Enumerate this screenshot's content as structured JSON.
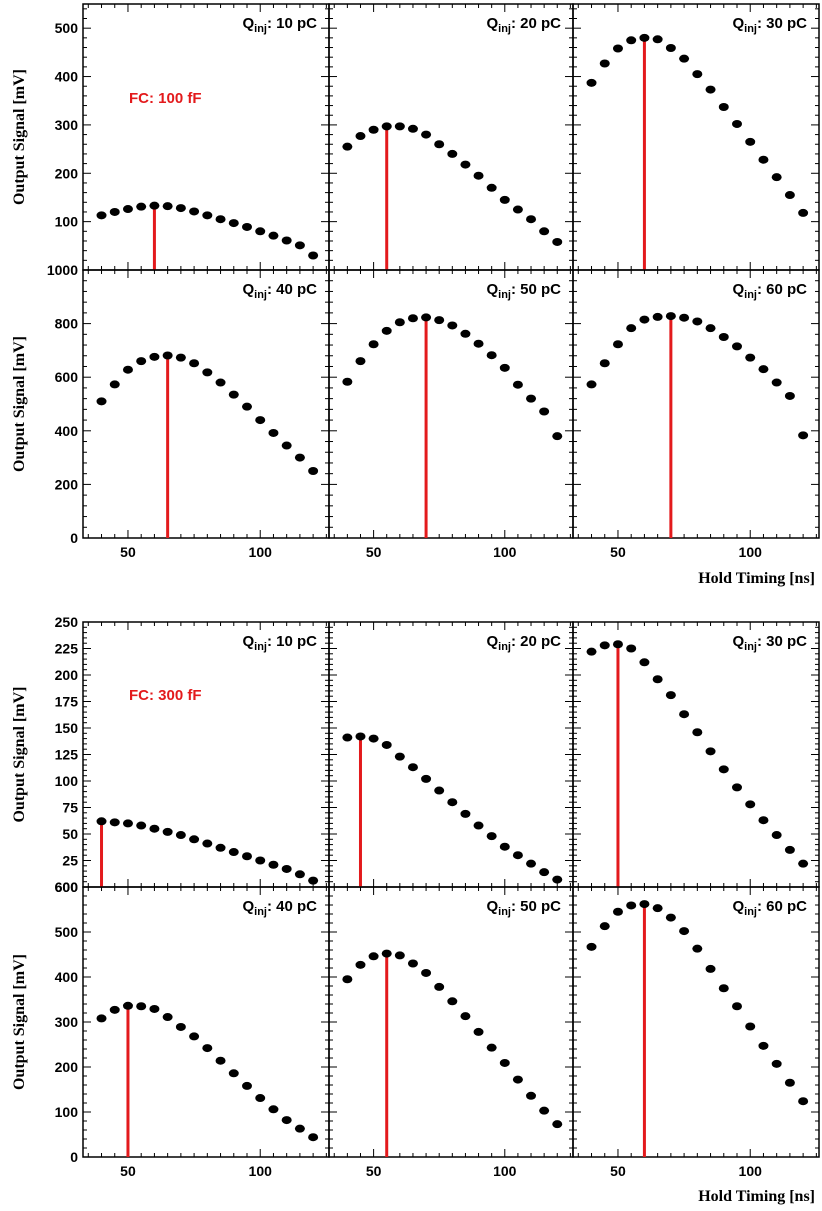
{
  "colors": {
    "marker": "#000000",
    "peak_line": "#e31a1c",
    "fc_label": "#e31a1c",
    "frame": "#000000"
  },
  "chart_data": [
    {
      "type": "scatter",
      "fc_label": "FC: 100 fF",
      "ylabel": "Output Signal [mV]",
      "xlabel": "Hold Timing [ns]",
      "x": [
        40,
        45,
        50,
        55,
        60,
        65,
        70,
        75,
        80,
        85,
        90,
        95,
        100,
        105,
        110,
        115,
        120
      ],
      "xlim": [
        33,
        126
      ],
      "xticks": [
        "50",
        "100"
      ],
      "xtick_values": [
        50,
        100
      ],
      "rows": [
        {
          "ylim": [
            0,
            550
          ],
          "yticks": [
            "100",
            "200",
            "300",
            "400",
            "500"
          ],
          "ytick_values": [
            100,
            200,
            300,
            400,
            500
          ],
          "top_label": "1000",
          "panels": [
            {
              "q_main": "Q",
              "q_sub": "inj",
              "q_tail": ": 10 pC",
              "peak_x": 60,
              "values": [
                113,
                120,
                126,
                131,
                133,
                132,
                128,
                121,
                113,
                105,
                97,
                89,
                80,
                71,
                61,
                51,
                30
              ]
            },
            {
              "q_main": "Q",
              "q_sub": "inj",
              "q_tail": ": 20 pC",
              "peak_x": 55,
              "values": [
                255,
                277,
                290,
                297,
                297,
                292,
                280,
                260,
                240,
                218,
                195,
                170,
                145,
                125,
                105,
                80,
                58
              ]
            },
            {
              "q_main": "Q",
              "q_sub": "inj",
              "q_tail": ": 30 pC",
              "peak_x": 60,
              "values": [
                387,
                427,
                458,
                475,
                480,
                477,
                459,
                437,
                405,
                373,
                337,
                302,
                265,
                228,
                192,
                155,
                118
              ]
            }
          ]
        },
        {
          "ylim": [
            0,
            1000
          ],
          "yticks": [
            "0",
            "200",
            "400",
            "600",
            "800"
          ],
          "ytick_values": [
            0,
            200,
            400,
            600,
            800
          ],
          "panels": [
            {
              "q_main": "Q",
              "q_sub": "inj",
              "q_tail": ": 40 pC",
              "peak_x": 65,
              "values": [
                510,
                573,
                628,
                660,
                676,
                681,
                673,
                652,
                618,
                580,
                535,
                490,
                440,
                392,
                345,
                300,
                250
              ]
            },
            {
              "q_main": "Q",
              "q_sub": "inj",
              "q_tail": ": 50 pC",
              "peak_x": 70,
              "values": [
                583,
                660,
                723,
                773,
                805,
                820,
                823,
                813,
                793,
                762,
                725,
                682,
                635,
                572,
                520,
                472,
                380
              ]
            },
            {
              "q_main": "Q",
              "q_sub": "inj",
              "q_tail": ": 60 pC",
              "peak_x": 70,
              "values": [
                573,
                652,
                723,
                783,
                815,
                825,
                828,
                822,
                808,
                783,
                750,
                715,
                673,
                630,
                580,
                530,
                383
              ]
            }
          ]
        }
      ]
    },
    {
      "type": "scatter",
      "fc_label": "FC: 300 fF",
      "ylabel": "Output Signal [mV]",
      "xlabel": "Hold Timing [ns]",
      "x": [
        40,
        45,
        50,
        55,
        60,
        65,
        70,
        75,
        80,
        85,
        90,
        95,
        100,
        105,
        110,
        115,
        120
      ],
      "xlim": [
        33,
        126
      ],
      "xticks": [
        "50",
        "100"
      ],
      "xtick_values": [
        50,
        100
      ],
      "rows": [
        {
          "ylim": [
            0,
            250
          ],
          "yticks": [
            "25",
            "50",
            "75",
            "100",
            "125",
            "150",
            "175",
            "200",
            "225",
            "250"
          ],
          "ytick_values": [
            25,
            50,
            75,
            100,
            125,
            150,
            175,
            200,
            225,
            250
          ],
          "top_label": "600",
          "panels": [
            {
              "q_main": "Q",
              "q_sub": "inj",
              "q_tail": ": 10 pC",
              "peak_x": 40,
              "values": [
                62,
                61,
                60,
                58,
                55,
                52,
                49,
                45,
                41,
                37,
                33,
                29,
                25,
                21,
                17,
                12,
                6
              ]
            },
            {
              "q_main": "Q",
              "q_sub": "inj",
              "q_tail": ": 20 pC",
              "peak_x": 45,
              "values": [
                141,
                142,
                140,
                134,
                123,
                113,
                102,
                91,
                80,
                69,
                58,
                48,
                38,
                30,
                22,
                14,
                7
              ]
            },
            {
              "q_main": "Q",
              "q_sub": "inj",
              "q_tail": ": 30 pC",
              "peak_x": 50,
              "values": [
                222,
                228,
                229,
                225,
                212,
                196,
                181,
                163,
                146,
                128,
                111,
                94,
                78,
                63,
                49,
                35,
                22
              ]
            }
          ]
        },
        {
          "ylim": [
            0,
            600
          ],
          "yticks": [
            "0",
            "100",
            "200",
            "300",
            "400",
            "500",
            "600"
          ],
          "ytick_values": [
            0,
            100,
            200,
            300,
            400,
            500,
            600
          ],
          "panels": [
            {
              "q_main": "Q",
              "q_sub": "inj",
              "q_tail": ": 40 pC",
              "peak_x": 50,
              "values": [
                308,
                327,
                336,
                335,
                329,
                311,
                289,
                268,
                242,
                214,
                186,
                158,
                131,
                106,
                82,
                63,
                44
              ]
            },
            {
              "q_main": "Q",
              "q_sub": "inj",
              "q_tail": ": 50 pC",
              "peak_x": 55,
              "values": [
                395,
                427,
                446,
                452,
                448,
                430,
                409,
                378,
                346,
                313,
                278,
                243,
                209,
                172,
                136,
                103,
                73
              ]
            },
            {
              "q_main": "Q",
              "q_sub": "inj",
              "q_tail": ": 60 pC",
              "peak_x": 60,
              "values": [
                467,
                513,
                545,
                559,
                562,
                553,
                532,
                502,
                463,
                418,
                375,
                335,
                290,
                247,
                207,
                165,
                124
              ]
            }
          ]
        }
      ]
    }
  ]
}
